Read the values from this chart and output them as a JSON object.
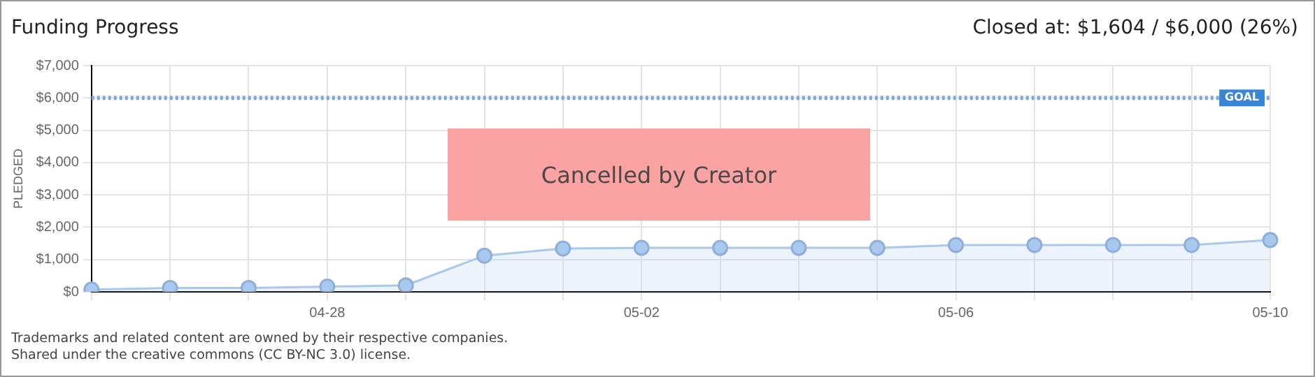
{
  "chart_data": {
    "type": "area",
    "title": "Funding Progress",
    "subtitle": "Closed at: $1,604 / $6,000 (26%)",
    "ylabel": "PLEDGED",
    "categories": [
      null,
      null,
      null,
      "04-28",
      null,
      null,
      null,
      "05-02",
      null,
      null,
      null,
      "05-06",
      null,
      null,
      null,
      "05-10"
    ],
    "series": [
      {
        "color": "#a9c8ee",
        "values": [
          70,
          120,
          120,
          160,
          200,
          1120,
          1340,
          1360,
          1360,
          1360,
          1360,
          1450,
          1450,
          1450,
          1450,
          1604
        ]
      }
    ],
    "ylim": [
      0,
      7000
    ],
    "yticks": [
      {
        "value": 0,
        "label": "$0"
      },
      {
        "value": 1000,
        "label": "$1,000"
      },
      {
        "value": 2000,
        "label": "$2,000"
      },
      {
        "value": 3000,
        "label": "$3,000"
      },
      {
        "value": 4000,
        "label": "$4,000"
      },
      {
        "value": 5000,
        "label": "$5,000"
      },
      {
        "value": 6000,
        "label": "$6,000"
      },
      {
        "value": 7000,
        "label": "$7,000"
      }
    ],
    "ref_lines": [
      {
        "axis": "y",
        "value": 6000,
        "label": "GOAL",
        "color": "#7fa9e0",
        "line_style": "dotted"
      }
    ],
    "grid": true,
    "marker": "circle",
    "legend": false,
    "annotations": [
      "Cancelled by Creator",
      "Trademarks and related content are owned by their respective companies.",
      "Shared under the creative commons (CC BY-NC 3.0) license."
    ]
  }
}
